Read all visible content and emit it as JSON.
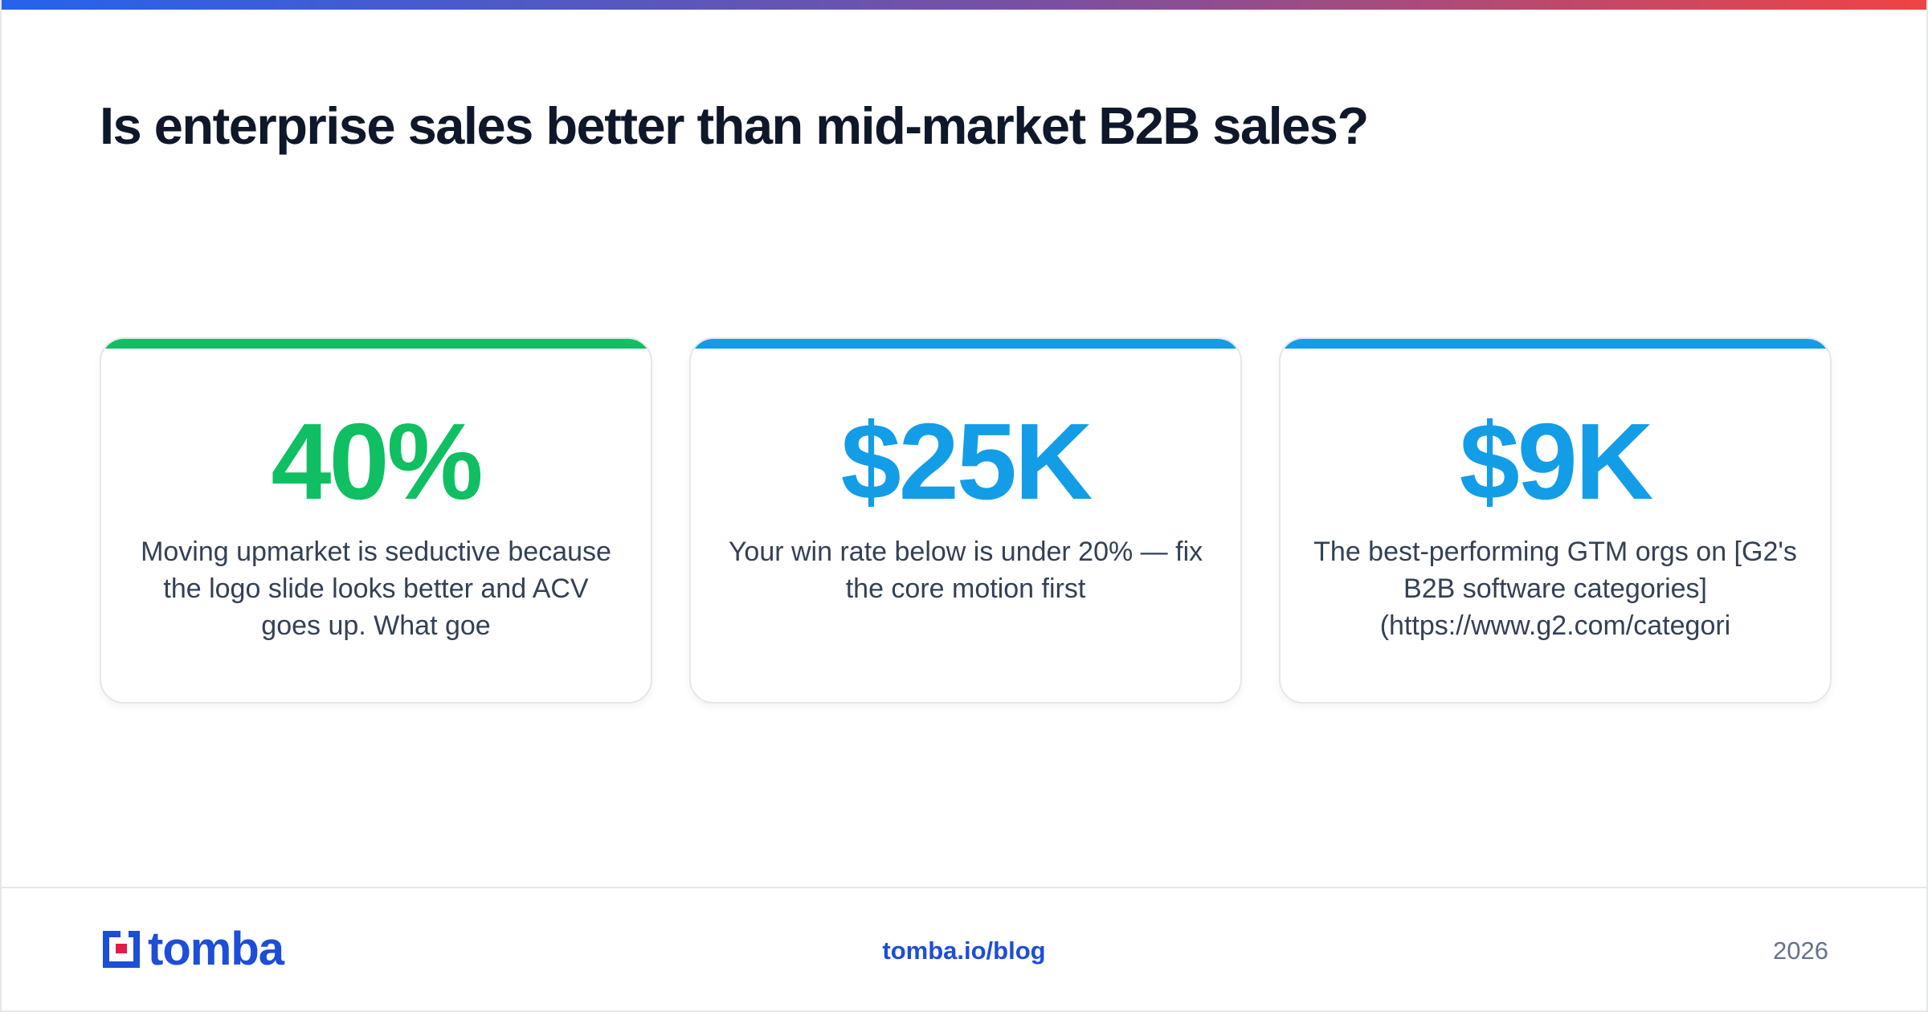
{
  "header": {
    "title": "Is enterprise sales better than mid-market B2B sales?"
  },
  "cards": [
    {
      "stat": "40%",
      "description": "Moving upmarket is seductive because the logo slide looks better and ACV goes up. What goe",
      "accent_color": "#0fbf62"
    },
    {
      "stat": "$25K",
      "description": "Your win rate below is under 20% — fix the core motion first",
      "accent_color": "#139de6"
    },
    {
      "stat": "$9K",
      "description": "The best-performing GTM orgs on [G2's B2B software categories](https://www.g2.com/categori",
      "accent_color": "#139de6"
    }
  ],
  "footer": {
    "logo_text": "tomba",
    "logo_icon": "tomba-logo-icon",
    "link": "tomba.io/blog",
    "year": "2026"
  },
  "colors": {
    "title": "#0f172a",
    "brand": "#1d4ed8",
    "logo_red": "#e11d48",
    "gradient_start": "#2563eb",
    "gradient_end": "#ef4444"
  }
}
